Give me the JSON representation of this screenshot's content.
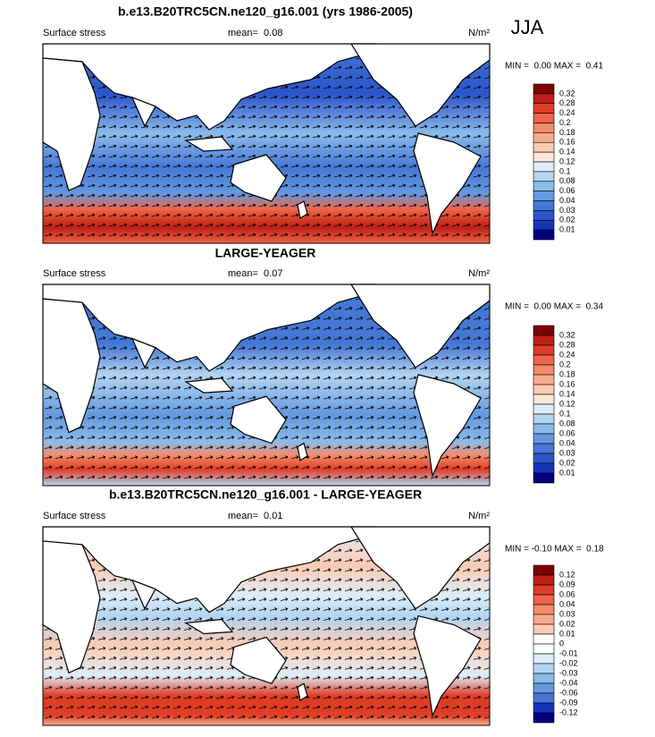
{
  "header": {
    "season": "JJA"
  },
  "panels": [
    {
      "title": "b.e13.B20TRC5CN.ne120_g16.001 (yrs 1986-2005)",
      "variable": "Surface stress",
      "mean": "mean=  0.08",
      "units": "N/m²",
      "minmax": "MIN =  0.00 MAX =  0.41",
      "colorbar": {
        "labels": [
          "0.32",
          "0.28",
          "0.24",
          "0.2",
          "0.18",
          "0.16",
          "0.14",
          "0.12",
          "0.1",
          "0.08",
          "0.06",
          "0.04",
          "0.03",
          "0.02",
          "0.01"
        ],
        "colors": [
          "#800000",
          "#bf1f16",
          "#e03d26",
          "#ee6446",
          "#f48b6a",
          "#f8ad8f",
          "#fbcbb4",
          "#fde7da",
          "#dcedf9",
          "#b3d5f2",
          "#8abbea",
          "#6499df",
          "#4577d5",
          "#2b55cb",
          "#1534b8",
          "#00007f"
        ]
      }
    },
    {
      "title": "LARGE-YEAGER",
      "variable": "Surface stress",
      "mean": "mean=  0.07",
      "units": "N/m²",
      "minmax": "MIN =  0.00 MAX =  0.34",
      "colorbar": {
        "labels": [
          "0.32",
          "0.28",
          "0.24",
          "0.2",
          "0.18",
          "0.16",
          "0.14",
          "0.12",
          "0.1",
          "0.08",
          "0.06",
          "0.04",
          "0.03",
          "0.02",
          "0.01"
        ],
        "colors": [
          "#800000",
          "#bf1f16",
          "#e03d26",
          "#ee6446",
          "#f48b6a",
          "#f8ad8f",
          "#fbcbb4",
          "#fde7da",
          "#dcedf9",
          "#b3d5f2",
          "#8abbea",
          "#6499df",
          "#4577d5",
          "#2b55cb",
          "#1534b8",
          "#00007f"
        ]
      }
    },
    {
      "title": "b.e13.B20TRC5CN.ne120_g16.001 - LARGE-YEAGER",
      "variable": "Surface stress",
      "mean": "mean=  0.01",
      "units": "N/m²",
      "minmax": "MIN = -0.10 MAX =  0.18",
      "colorbar": {
        "labels": [
          "0.12",
          "0.09",
          "0.06",
          "0.04",
          "0.03",
          "0.02",
          "0.01",
          "0",
          "-0.01",
          "-0.02",
          "-0.03",
          "-0.04",
          "-0.06",
          "-0.09",
          "-0.12"
        ],
        "colors": [
          "#800000",
          "#bf1f16",
          "#e03d26",
          "#ee6446",
          "#f48b6a",
          "#f8ad8f",
          "#fbcbb4",
          "#ffffff",
          "#ffffff",
          "#dcedf9",
          "#b3d5f2",
          "#8abbea",
          "#6499df",
          "#4577d5",
          "#1534b8",
          "#00007f"
        ]
      }
    }
  ]
}
